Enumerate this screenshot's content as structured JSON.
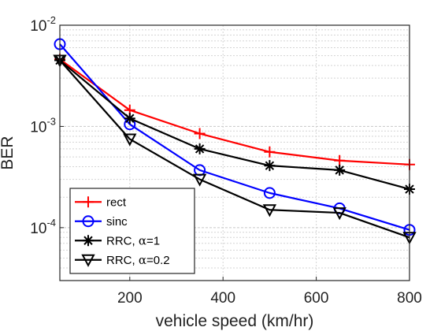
{
  "chart_data": {
    "type": "line",
    "title": "",
    "xlabel": "vehicle speed (km/hr)",
    "ylabel": "BER",
    "xlim": [
      50,
      800
    ],
    "ylim": [
      3e-05,
      0.01
    ],
    "yscale": "log",
    "x_ticks": [
      200,
      400,
      600,
      800
    ],
    "x_tick_labels": [
      "200",
      "400",
      "600",
      "800"
    ],
    "y_ticks": [
      0.0001,
      0.001,
      0.01
    ],
    "y_tick_labels": [
      {
        "base": "10",
        "exp": "-4"
      },
      {
        "base": "10",
        "exp": "-3"
      },
      {
        "base": "10",
        "exp": "-2"
      }
    ],
    "grid": true,
    "legend_position": "bottom-left",
    "x": [
      50,
      200,
      350,
      500,
      650,
      800
    ],
    "series": [
      {
        "name": "rect",
        "prefix": "rect",
        "alpha": "",
        "color": "#ff0000",
        "marker": "plus",
        "values": [
          0.0046,
          0.00145,
          0.00085,
          0.00056,
          0.00046,
          0.00042
        ]
      },
      {
        "name": "sinc",
        "prefix": "sinc",
        "alpha": "",
        "color": "#0000ff",
        "marker": "circle",
        "values": [
          0.0065,
          0.00105,
          0.00037,
          0.00022,
          0.000155,
          9.5e-05
        ]
      },
      {
        "name": "RRC, α=1",
        "prefix": "RRC, ",
        "alpha": "=1",
        "color": "#000000",
        "marker": "star",
        "values": [
          0.0045,
          0.0012,
          0.0006,
          0.00041,
          0.00037,
          0.00024
        ]
      },
      {
        "name": "RRC, α=0.2",
        "prefix": "RRC, ",
        "alpha": "=0.2",
        "color": "#000000",
        "marker": "triangle-down",
        "values": [
          0.0045,
          0.00075,
          0.0003,
          0.00015,
          0.00014,
          8e-05
        ]
      }
    ]
  }
}
